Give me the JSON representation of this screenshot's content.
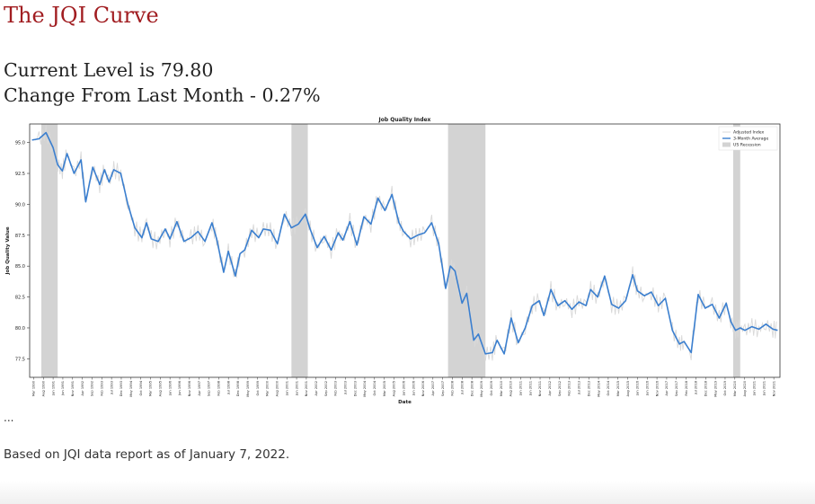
{
  "page": {
    "title": "The JQI Curve",
    "current_level": "Current Level is 79.80",
    "change": "Change From Last Month - 0.27%",
    "ellipsis": "...",
    "footnote": "Based on JQI data report as of January 7, 2022."
  },
  "chart_data": {
    "type": "line",
    "title": "Job Quality Index",
    "xlabel": "Date",
    "ylabel": "Job Quality Value",
    "ylim": [
      76.0,
      96.5
    ],
    "yticks": [
      77.5,
      80.0,
      82.5,
      85.0,
      87.5,
      90.0,
      92.5,
      95.0
    ],
    "xlim": [
      1990.0,
      2022.1
    ],
    "grid": false,
    "legend": {
      "placement": "top-right",
      "entries": [
        {
          "label": "Adjusted Index",
          "color": "#d9d9d9"
        },
        {
          "label": "3-Month Average",
          "color": "#3b7fcf"
        },
        {
          "label": "US Recession",
          "color": "#d3d3d3"
        }
      ]
    },
    "colors": {
      "average": "#3b7fcf",
      "adjusted": "#d9d9d9",
      "recession": "#d3d3d3"
    },
    "recessions": [
      [
        1990.5,
        1991.2
      ],
      [
        2001.2,
        2001.9
      ],
      [
        2007.9,
        2009.5
      ],
      [
        2020.1,
        2020.4
      ]
    ],
    "xtick_labels": [
      "Mar 1990",
      "Aug 1990",
      "Jan 1991",
      "Jun 1991",
      "Nov 1991",
      "Apr 1992",
      "Sep 1992",
      "Feb 1993",
      "Jul 1993",
      "Dec 1993",
      "May 1994",
      "Oct 1994",
      "Mar 1995",
      "Aug 1995",
      "Jan 1996",
      "Jun 1996",
      "Nov 1996",
      "Apr 1997",
      "Sep 1997",
      "Feb 1998",
      "Jul 1998",
      "Dec 1998",
      "May 1999",
      "Oct 1999",
      "Mar 2000",
      "Aug 2000",
      "Jan 2001",
      "Jun 2001",
      "Nov 2001",
      "Apr 2002",
      "Sep 2002",
      "Feb 2003",
      "Jul 2003",
      "Dec 2003",
      "May 2004",
      "Oct 2004",
      "Mar 2005",
      "Aug 2005",
      "Jan 2006",
      "Jun 2006",
      "Nov 2006",
      "Apr 2007",
      "Sep 2007",
      "Feb 2008",
      "Jul 2008",
      "Dec 2008",
      "May 2009",
      "Oct 2009",
      "Mar 2010",
      "Aug 2010",
      "Jan 2011",
      "Jun 2011",
      "Nov 2011",
      "Apr 2012",
      "Sep 2012",
      "Feb 2013",
      "Jul 2013",
      "Dec 2013",
      "May 2014",
      "Oct 2014",
      "Mar 2015",
      "Aug 2015",
      "Jan 2016",
      "Jun 2016",
      "Nov 2016",
      "Apr 2017",
      "Sep 2017",
      "Feb 2018",
      "Jul 2018",
      "Dec 2018",
      "May 2019",
      "Oct 2019",
      "Mar 2020",
      "Aug 2020",
      "Jan 2021",
      "Jun 2021",
      "Nov 2021"
    ],
    "series": [
      {
        "name": "3-Month Average",
        "x": [
          1990.1,
          1990.4,
          1990.7,
          1991.0,
          1991.2,
          1991.4,
          1991.6,
          1991.9,
          1992.2,
          1992.4,
          1992.7,
          1993.0,
          1993.2,
          1993.4,
          1993.6,
          1993.9,
          1994.2,
          1994.5,
          1994.8,
          1995.0,
          1995.2,
          1995.5,
          1995.8,
          1996.0,
          1996.3,
          1996.6,
          1996.9,
          1997.2,
          1997.5,
          1997.8,
          1998.0,
          1998.3,
          1998.5,
          1998.8,
          1999.0,
          1999.2,
          1999.5,
          1999.8,
          2000.0,
          2000.3,
          2000.6,
          2000.9,
          2001.2,
          2001.5,
          2001.8,
          2002.0,
          2002.3,
          2002.6,
          2002.9,
          2003.2,
          2003.4,
          2003.7,
          2004.0,
          2004.3,
          2004.6,
          2004.9,
          2005.2,
          2005.5,
          2005.8,
          2006.0,
          2006.3,
          2006.6,
          2006.9,
          2007.2,
          2007.5,
          2007.8,
          2008.0,
          2008.2,
          2008.5,
          2008.7,
          2009.0,
          2009.2,
          2009.5,
          2009.8,
          2010.0,
          2010.3,
          2010.6,
          2010.9,
          2011.2,
          2011.5,
          2011.8,
          2012.0,
          2012.3,
          2012.6,
          2012.9,
          2013.2,
          2013.5,
          2013.8,
          2014.0,
          2014.3,
          2014.6,
          2014.9,
          2015.2,
          2015.5,
          2015.8,
          2016.0,
          2016.3,
          2016.6,
          2016.9,
          2017.2,
          2017.5,
          2017.8,
          2018.0,
          2018.3,
          2018.6,
          2018.9,
          2019.2,
          2019.5,
          2019.8,
          2020.0,
          2020.2,
          2020.4,
          2020.6,
          2020.9,
          2021.2,
          2021.5,
          2021.8,
          2022.0
        ],
        "y": [
          95.2,
          95.3,
          95.8,
          94.6,
          93.2,
          92.7,
          94.1,
          92.5,
          93.6,
          90.2,
          93.0,
          91.6,
          92.8,
          91.8,
          92.8,
          92.5,
          90.0,
          88.1,
          87.3,
          88.5,
          87.2,
          87.0,
          88.0,
          87.2,
          88.6,
          87.0,
          87.3,
          87.8,
          87.0,
          88.5,
          87.2,
          84.5,
          86.2,
          84.2,
          86.0,
          86.3,
          87.9,
          87.3,
          88.0,
          87.9,
          86.8,
          89.2,
          88.1,
          88.4,
          89.2,
          88.0,
          86.5,
          87.4,
          86.3,
          87.7,
          87.1,
          88.6,
          86.7,
          89.0,
          88.4,
          90.5,
          89.5,
          90.8,
          88.5,
          87.8,
          87.2,
          87.5,
          87.7,
          88.5,
          86.8,
          83.2,
          85.0,
          84.6,
          82.0,
          82.8,
          79.0,
          79.5,
          77.9,
          78.0,
          79.0,
          77.9,
          80.8,
          78.8,
          80.0,
          81.8,
          82.2,
          81.0,
          83.1,
          81.8,
          82.2,
          81.5,
          82.1,
          81.8,
          83.1,
          82.5,
          84.2,
          81.9,
          81.6,
          82.2,
          84.3,
          83.0,
          82.6,
          82.9,
          81.8,
          82.4,
          79.8,
          78.7,
          78.9,
          78.0,
          82.7,
          81.6,
          81.9,
          80.8,
          82.0,
          80.5,
          79.8,
          80.0,
          79.8,
          80.1,
          79.9,
          80.3,
          79.9,
          79.8
        ]
      }
    ]
  }
}
